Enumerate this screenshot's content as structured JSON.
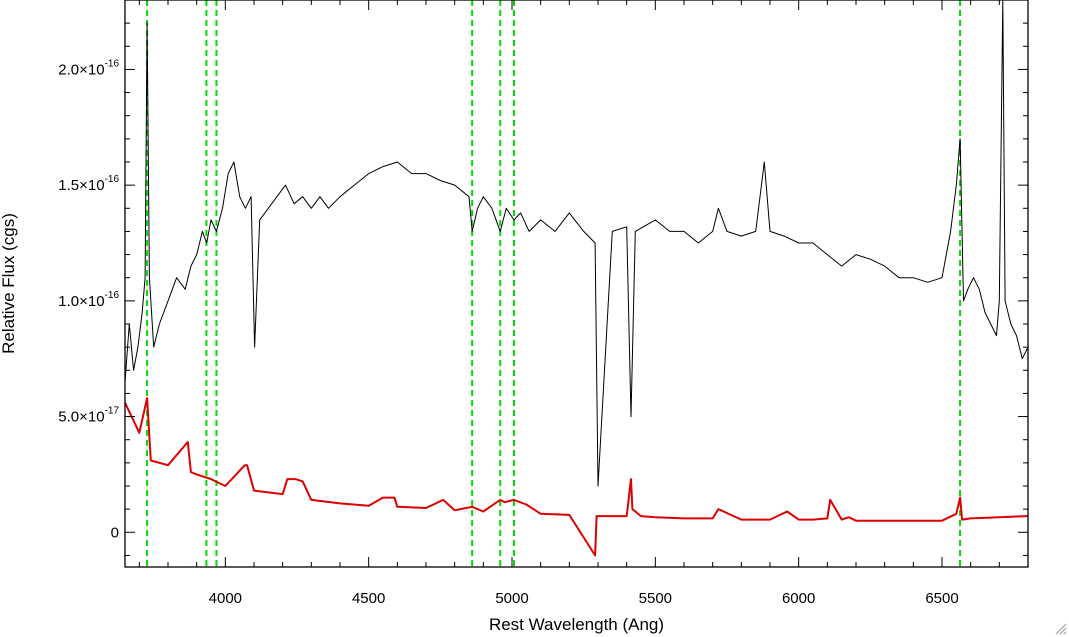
{
  "chart_data": {
    "type": "line",
    "title": "",
    "xlabel": "Rest Wavelength (Ang)",
    "ylabel": "Relative Flux (cgs)",
    "xlim": [
      3650,
      6800
    ],
    "ylim": [
      -1.5e-17,
      2.3e-16
    ],
    "x_ticks": [
      {
        "value": 4000,
        "label": "4000"
      },
      {
        "value": 4500,
        "label": "4500"
      },
      {
        "value": 5000,
        "label": "5000"
      },
      {
        "value": 5500,
        "label": "5500"
      },
      {
        "value": 6000,
        "label": "6000"
      },
      {
        "value": 6500,
        "label": "6500"
      }
    ],
    "y_ticks": [
      {
        "value": 0,
        "mant": "0",
        "exp": ""
      },
      {
        "value": 5e-17,
        "mant": "5.0×10",
        "exp": "-17"
      },
      {
        "value": 1e-16,
        "mant": "1.0×10",
        "exp": "-16"
      },
      {
        "value": 1.5e-16,
        "mant": "1.5×10",
        "exp": "-16"
      },
      {
        "value": 2e-16,
        "mant": "2.0×10",
        "exp": "-16"
      }
    ],
    "grid": false,
    "reference_lines_x": [
      3727,
      3934,
      3969,
      4861,
      4959,
      5007,
      6563
    ],
    "colors": {
      "spectrum": "#000000",
      "error": "#dd0000",
      "reference": "#00dd00"
    },
    "series": [
      {
        "x": [
          3650,
          3665,
          3680,
          3695,
          3710,
          3720,
          3727,
          3735,
          3750,
          3770,
          3800,
          3830,
          3860,
          3880,
          3900,
          3920,
          3935,
          3950,
          3969,
          3990,
          4010,
          4030,
          4050,
          4070,
          4090,
          4102,
          4120,
          4150,
          4180,
          4210,
          4240,
          4270,
          4300,
          4330,
          4360,
          4400,
          4450,
          4500,
          4550,
          4600,
          4650,
          4700,
          4750,
          4800,
          4850,
          4861,
          4880,
          4900,
          4930,
          4959,
          4980,
          5007,
          5030,
          5060,
          5100,
          5150,
          5200,
          5250,
          5290,
          5300,
          5350,
          5400,
          5415,
          5430,
          5500,
          5550,
          5600,
          5650,
          5700,
          5720,
          5750,
          5800,
          5850,
          5880,
          5900,
          5950,
          6000,
          6050,
          6100,
          6150,
          6200,
          6250,
          6300,
          6350,
          6400,
          6450,
          6500,
          6530,
          6550,
          6563,
          6575,
          6590,
          6610,
          6630,
          6650,
          6670,
          6690,
          6700,
          6712,
          6720,
          6740,
          6760,
          6780,
          6800
        ],
        "y": [
          6.5e-17,
          9e-17,
          7e-17,
          8e-17,
          9.5e-17,
          1.1e-16,
          2.2e-16,
          1.1e-16,
          8e-17,
          9e-17,
          1e-16,
          1.1e-16,
          1.05e-16,
          1.15e-16,
          1.2e-16,
          1.3e-16,
          1.25e-16,
          1.35e-16,
          1.3e-16,
          1.4e-16,
          1.55e-16,
          1.6e-16,
          1.45e-16,
          1.4e-16,
          1.45e-16,
          8e-17,
          1.35e-16,
          1.4e-16,
          1.45e-16,
          1.5e-16,
          1.42e-16,
          1.45e-16,
          1.4e-16,
          1.45e-16,
          1.4e-16,
          1.45e-16,
          1.5e-16,
          1.55e-16,
          1.58e-16,
          1.6e-16,
          1.55e-16,
          1.55e-16,
          1.52e-16,
          1.5e-16,
          1.45e-16,
          1.3e-16,
          1.4e-16,
          1.45e-16,
          1.4e-16,
          1.3e-16,
          1.4e-16,
          1.35e-16,
          1.38e-16,
          1.3e-16,
          1.35e-16,
          1.3e-16,
          1.38e-16,
          1.3e-16,
          1.25e-16,
          2e-17,
          1.3e-16,
          1.32e-16,
          5e-17,
          1.3e-16,
          1.35e-16,
          1.3e-16,
          1.3e-16,
          1.25e-16,
          1.3e-16,
          1.4e-16,
          1.3e-16,
          1.28e-16,
          1.3e-16,
          1.6e-16,
          1.3e-16,
          1.28e-16,
          1.25e-16,
          1.25e-16,
          1.2e-16,
          1.15e-16,
          1.2e-16,
          1.18e-16,
          1.15e-16,
          1.1e-16,
          1.1e-16,
          1.08e-16,
          1.1e-16,
          1.3e-16,
          1.5e-16,
          1.7e-16,
          1e-16,
          1.05e-16,
          1.1e-16,
          1.05e-16,
          9.5e-17,
          9e-17,
          8.5e-17,
          1e-16,
          2.3e-16,
          1e-16,
          9e-17,
          8.5e-17,
          7.5e-17,
          8e-17
        ]
      },
      {
        "x": [
          3650,
          3700,
          3727,
          3740,
          3800,
          3869,
          3880,
          3900,
          3950,
          4000,
          4068,
          4076,
          4100,
          4200,
          4216,
          4245,
          4270,
          4300,
          4400,
          4500,
          4550,
          4590,
          4600,
          4700,
          4760,
          4800,
          4861,
          4900,
          4959,
          4975,
          5007,
          5050,
          5100,
          5200,
          5290,
          5295,
          5350,
          5400,
          5415,
          5420,
          5450,
          5500,
          5600,
          5700,
          5720,
          5800,
          5900,
          5960,
          6000,
          6050,
          6100,
          6110,
          6150,
          6175,
          6200,
          6300,
          6400,
          6500,
          6550,
          6563,
          6570,
          6600,
          6700,
          6800
        ],
        "y": [
          5.6e-17,
          4.3e-17,
          5.8e-17,
          3.1e-17,
          2.9e-17,
          3.9e-17,
          2.6e-17,
          2.5e-17,
          2.3e-17,
          2e-17,
          2.9e-17,
          2.9e-17,
          1.8e-17,
          1.65e-17,
          2.3e-17,
          2.3e-17,
          2.2e-17,
          1.4e-17,
          1.25e-17,
          1.15e-17,
          1.5e-17,
          1.5e-17,
          1.1e-17,
          1.05e-17,
          1.4e-17,
          9.5e-18,
          1.1e-17,
          9e-18,
          1.4e-17,
          1.3e-17,
          1.4e-17,
          1.2e-17,
          8e-18,
          7.5e-18,
          -1e-17,
          7e-18,
          7e-18,
          7e-18,
          2.3e-17,
          1e-17,
          7e-18,
          6.5e-18,
          6e-18,
          6e-18,
          1e-17,
          5.5e-18,
          5.5e-18,
          9e-18,
          5.5e-18,
          5.5e-18,
          6e-18,
          1.4e-17,
          5.5e-18,
          6.5e-18,
          5e-18,
          5e-18,
          5e-18,
          5e-18,
          8e-18,
          1.5e-17,
          5.5e-18,
          6e-18,
          6.5e-18,
          7e-18
        ]
      }
    ]
  }
}
